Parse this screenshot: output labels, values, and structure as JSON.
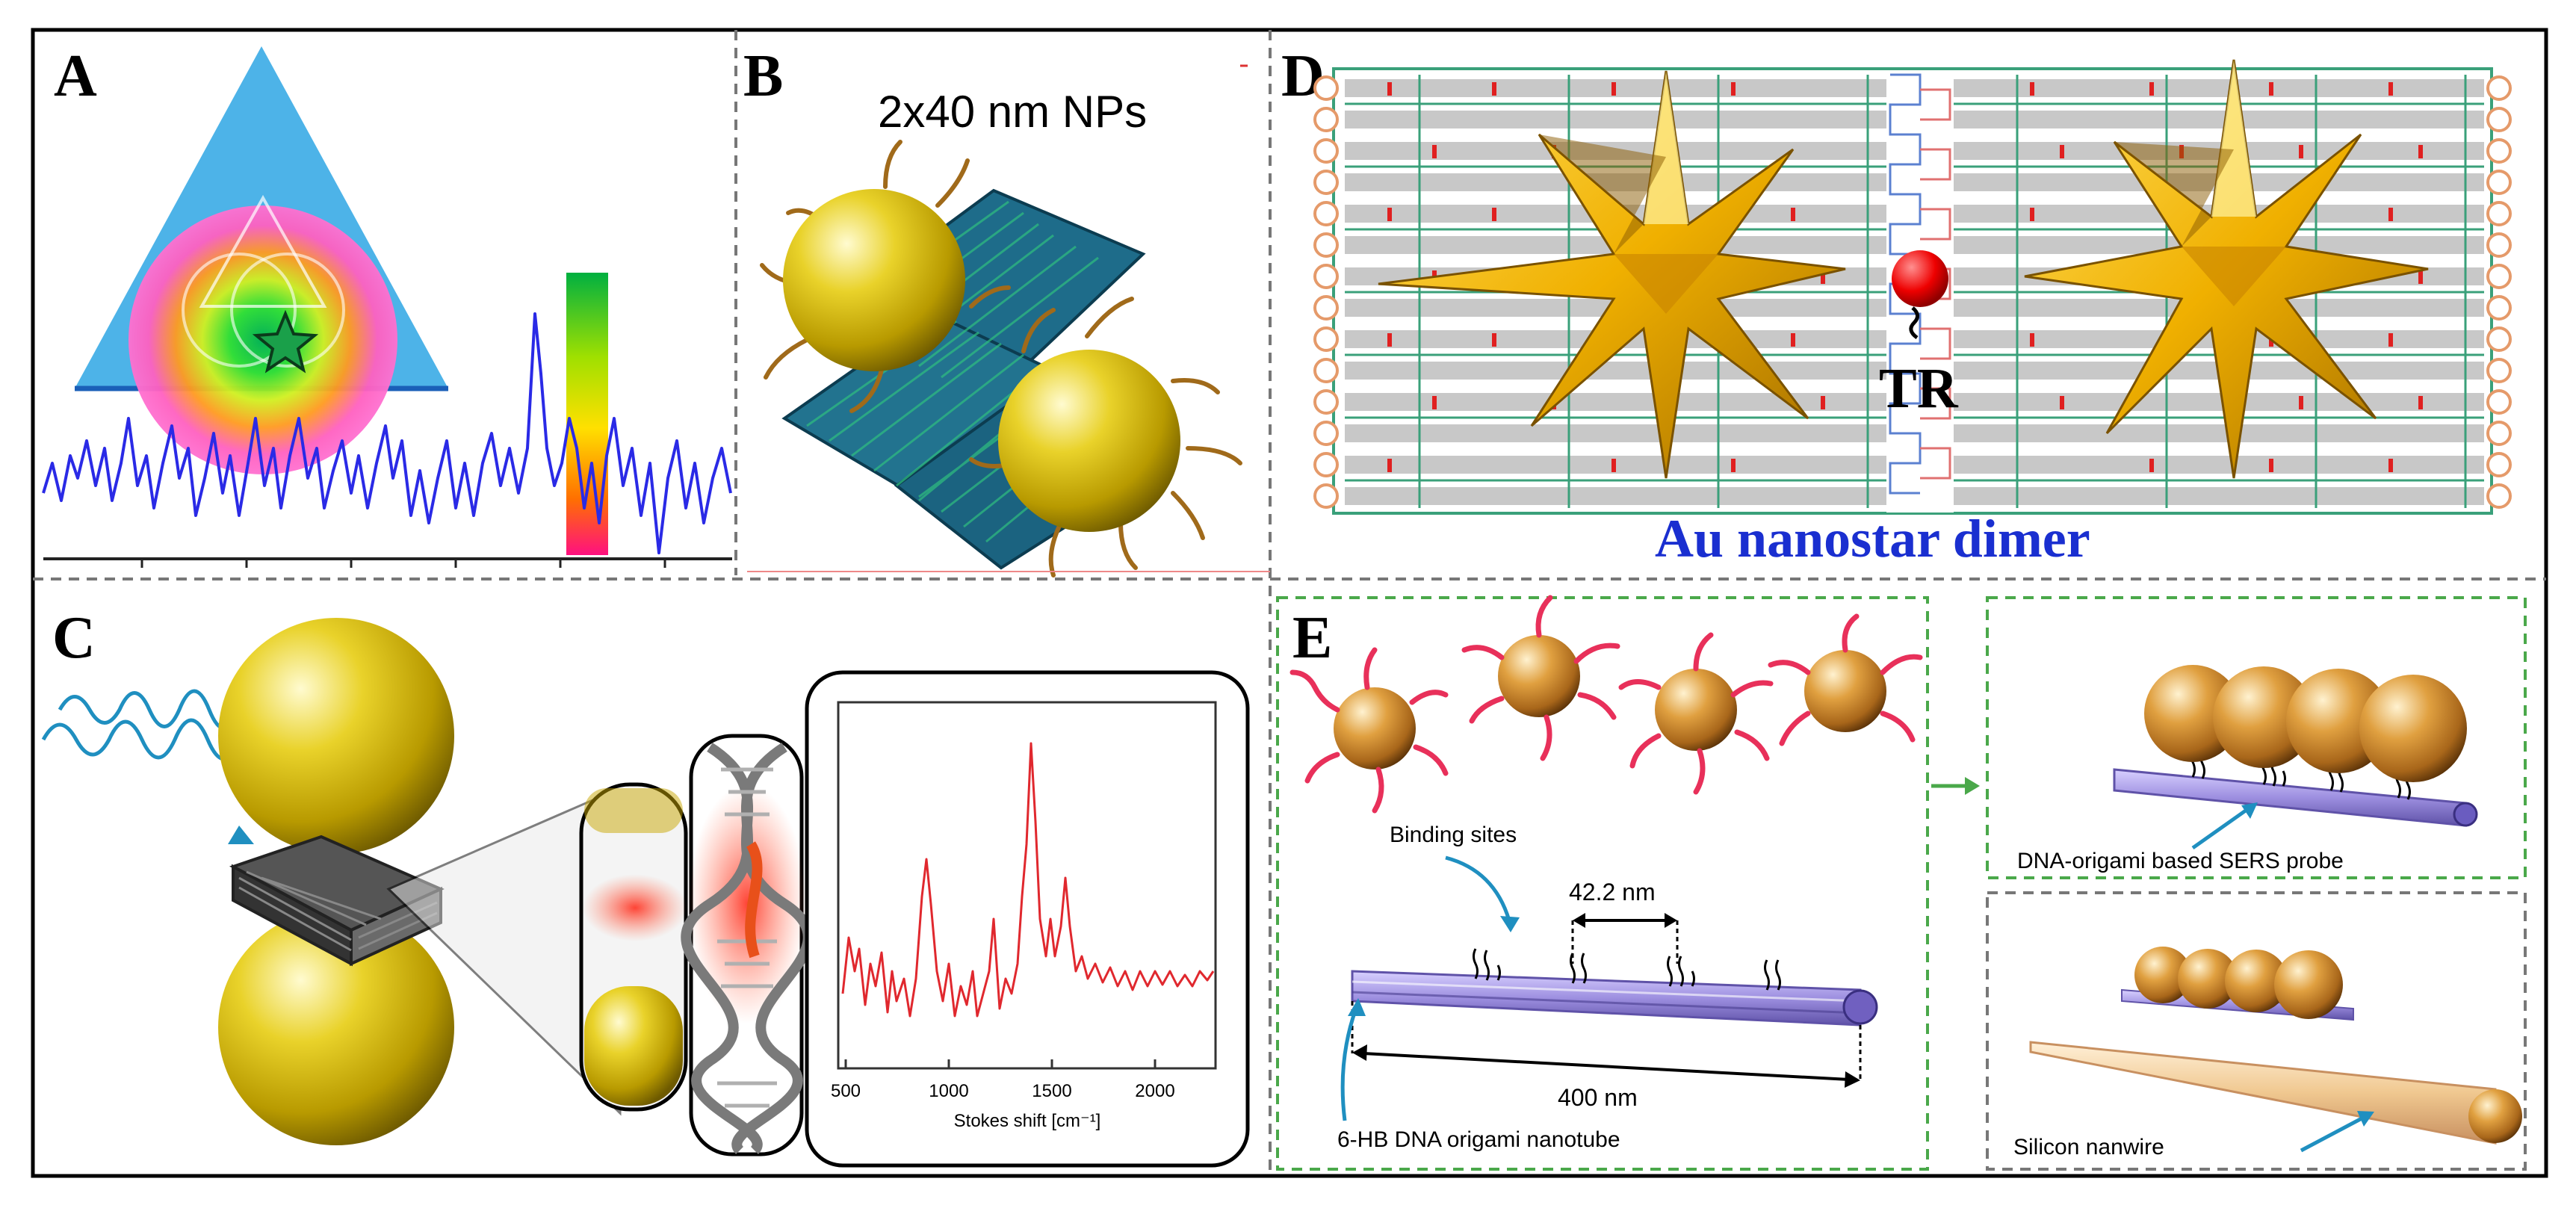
{
  "panels": {
    "a": {
      "letter": "A"
    },
    "b": {
      "letter": "B",
      "title": "2x40 nm NPs"
    },
    "c": {
      "letter": "C",
      "inset_xlabel": "Stokes shift [cm⁻¹]",
      "inset_xticks": [
        "500",
        "1000",
        "1500",
        "2000"
      ]
    },
    "d": {
      "letter": "D",
      "tag": "TR",
      "caption": "Au nanostar dimer"
    },
    "e": {
      "letter": "E",
      "binding_sites": "Binding sites",
      "spacing": "42.2 nm",
      "length": "400 nm",
      "nanotube": "6-HB DNA origami nanotube",
      "sers_probe": "DNA-origami based SERS probe",
      "nanowire": "Silicon nanwire"
    }
  },
  "colors": {
    "gold": "#d6b400",
    "spectrum_blue": "#2a2ae6",
    "spectrum_red": "#e0282e",
    "caption_blue": "#1a2fd0",
    "dna_tube": "#9d8fe0",
    "panel_border_green": "#4aa84a"
  }
}
